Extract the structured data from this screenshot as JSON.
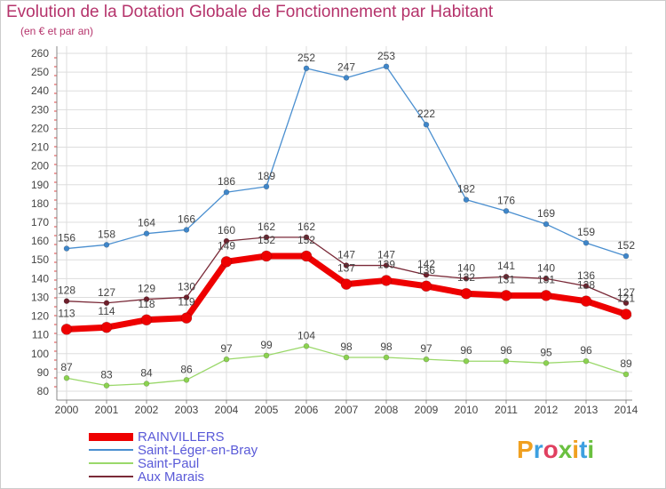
{
  "title": "Evolution de la Dotation Globale de Fonctionnement par Habitant",
  "subtitle": "(en € et par an)",
  "logo_text": "Proxiti",
  "chart_data": {
    "type": "line",
    "title": "Evolution de la Dotation Globale de Fonctionnement par Habitant",
    "ylabel": "(en € et par an)",
    "xlabel": "",
    "ylim": [
      80,
      260
    ],
    "ytick_step": 10,
    "grid": true,
    "legend_position": "bottom-left",
    "categories": [
      "2000",
      "2001",
      "2002",
      "2003",
      "2004",
      "2005",
      "2006",
      "2007",
      "2008",
      "2009",
      "2010",
      "2011",
      "2012",
      "2013",
      "2014"
    ],
    "yticks": [
      "80",
      "90",
      "100",
      "110",
      "120",
      "130",
      "140",
      "150",
      "160",
      "170",
      "180",
      "190",
      "200",
      "210",
      "220",
      "230",
      "240",
      "250",
      "260"
    ],
    "series": [
      {
        "name": "Saint-Léger-en-Bray",
        "key": "saint-leger-en-bray",
        "color": "#4a8fd0",
        "marker_color": "#3f86c9",
        "width": 1.3,
        "marker_r": 3,
        "values": [
          156,
          158,
          164,
          166,
          186,
          189,
          252,
          247,
          253,
          222,
          182,
          176,
          169,
          159,
          152
        ]
      },
      {
        "name": "Saint-Paul",
        "key": "saint-paul",
        "color": "#9ad86a",
        "marker_color": "#8bd250",
        "width": 1.3,
        "marker_r": 3,
        "values": [
          87,
          83,
          84,
          86,
          97,
          99,
          104,
          98,
          98,
          97,
          96,
          96,
          95,
          96,
          89
        ]
      },
      {
        "name": "Aux Marais",
        "key": "aux-marais",
        "color": "#7a2a38",
        "marker_color": "#6e1f2b",
        "width": 1.3,
        "marker_r": 3,
        "values": [
          128,
          127,
          129,
          130,
          160,
          162,
          162,
          147,
          147,
          142,
          140,
          141,
          140,
          136,
          127
        ]
      },
      {
        "name": "RAINVILLERS",
        "key": "rainvillers",
        "color": "#ee0000",
        "marker_color": "#ee0000",
        "width": 7,
        "marker_r": 6,
        "values": [
          113,
          114,
          118,
          119,
          149,
          152,
          152,
          137,
          139,
          136,
          132,
          131,
          131,
          128,
          121
        ]
      }
    ],
    "legend_order": [
      "rainvillers",
      "saint-leger-en-bray",
      "saint-paul",
      "aux-marais"
    ]
  }
}
